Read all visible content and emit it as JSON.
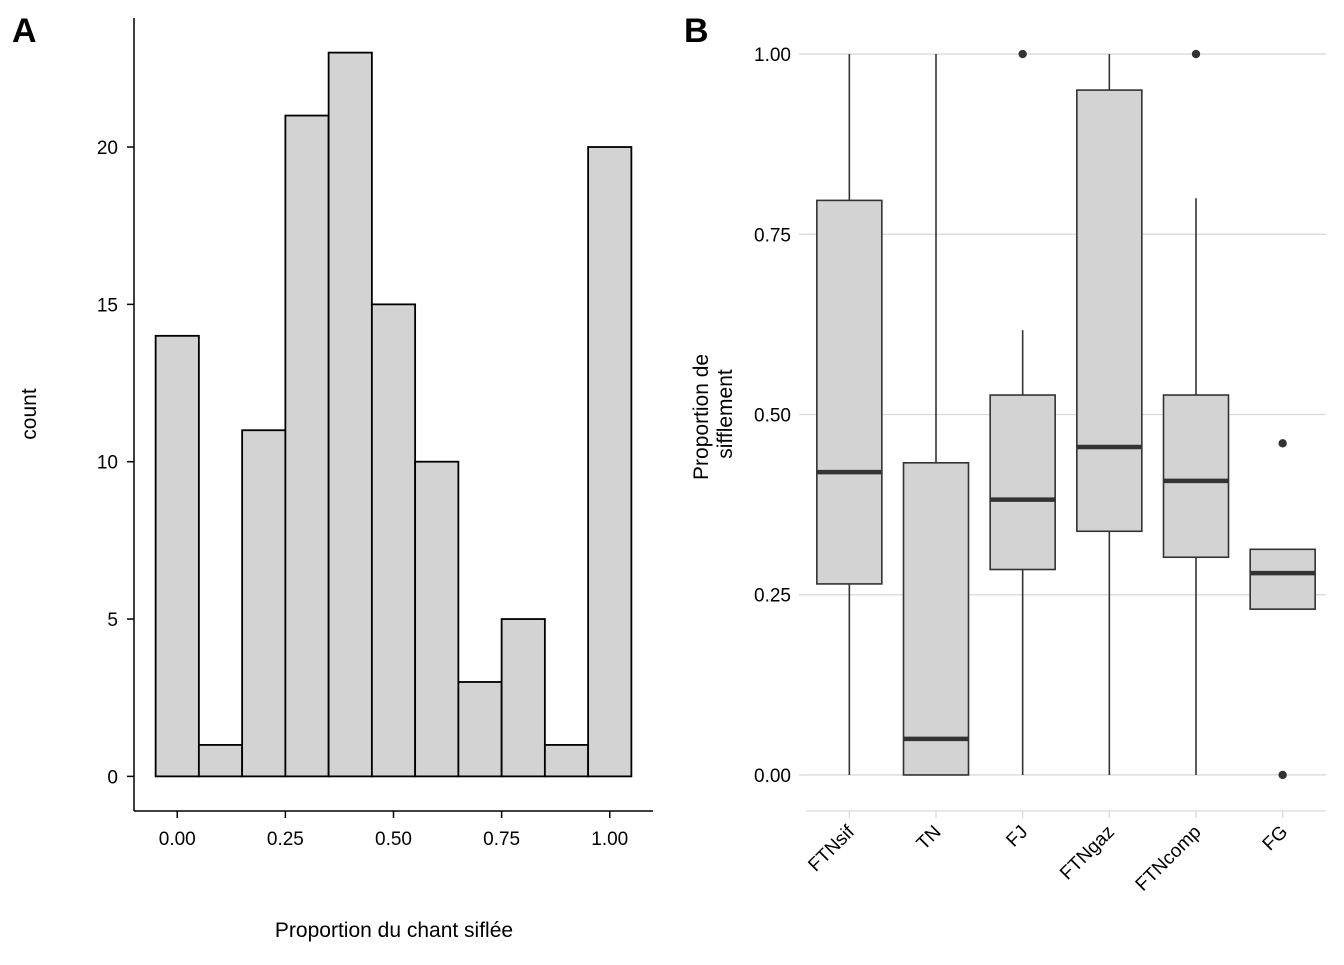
{
  "chart_data": [
    {
      "panel": "A",
      "type": "bar",
      "subtype": "histogram",
      "xlabel": "Proportion du chant siflée",
      "ylabel": "count",
      "bin_width": 0.1,
      "bin_centers": [
        0.0,
        0.1,
        0.2,
        0.3,
        0.4,
        0.5,
        0.6,
        0.7,
        0.8,
        0.9,
        1.0
      ],
      "values": [
        14,
        1,
        11,
        21,
        23,
        15,
        10,
        3,
        5,
        1,
        20
      ],
      "xlim": [
        -0.1,
        1.1
      ],
      "ylim": [
        -1.1,
        24.1
      ],
      "xticks": [
        0.0,
        0.25,
        0.5,
        0.75,
        1.0
      ],
      "xtick_labels": [
        "0.00",
        "0.25",
        "0.50",
        "0.75",
        "1.00"
      ],
      "yticks": [
        0,
        5,
        10,
        15,
        20
      ],
      "ytick_labels": [
        "0",
        "5",
        "10",
        "15",
        "20"
      ],
      "grid": false,
      "colors": {
        "fill": "#d3d3d3",
        "stroke": "#000000"
      }
    },
    {
      "panel": "B",
      "type": "box",
      "xlabel": "",
      "ylabel_lines": [
        "Proportion de",
        "sifflement"
      ],
      "categories": [
        "FTNsif",
        "TN",
        "FJ",
        "FTNgaz",
        "FTNcomp",
        "FG"
      ],
      "boxes": [
        {
          "category": "FTNsif",
          "whisker_low": 0.0,
          "q1": 0.265,
          "median": 0.42,
          "q3": 0.797,
          "whisker_high": 1.0,
          "outliers": []
        },
        {
          "category": "TN",
          "whisker_low": 0.0,
          "q1": 0.0,
          "median": 0.05,
          "q3": 0.433,
          "whisker_high": 1.0,
          "outliers": []
        },
        {
          "category": "FJ",
          "whisker_low": 0.0,
          "q1": 0.285,
          "median": 0.382,
          "q3": 0.527,
          "whisker_high": 0.617,
          "outliers": [
            1.0
          ]
        },
        {
          "category": "FTNgaz",
          "whisker_low": 0.0,
          "q1": 0.338,
          "median": 0.455,
          "q3": 0.95,
          "whisker_high": 1.0,
          "outliers": []
        },
        {
          "category": "FTNcomp",
          "whisker_low": 0.0,
          "q1": 0.302,
          "median": 0.408,
          "q3": 0.527,
          "whisker_high": 0.8,
          "outliers": [
            1.0
          ]
        },
        {
          "category": "FG",
          "whisker_low": 0.23,
          "q1": 0.23,
          "median": 0.28,
          "q3": 0.313,
          "whisker_high": 0.313,
          "outliers": [
            0.46,
            0.0
          ]
        }
      ],
      "ylim": [
        -0.05,
        1.05
      ],
      "yticks": [
        0.0,
        0.25,
        0.5,
        0.75,
        1.0
      ],
      "ytick_labels": [
        "0.00",
        "0.25",
        "0.50",
        "0.75",
        "1.00"
      ],
      "grid": true,
      "colors": {
        "fill": "#d3d3d3",
        "stroke": "#333333",
        "grid": "#d9d9d9"
      }
    }
  ]
}
